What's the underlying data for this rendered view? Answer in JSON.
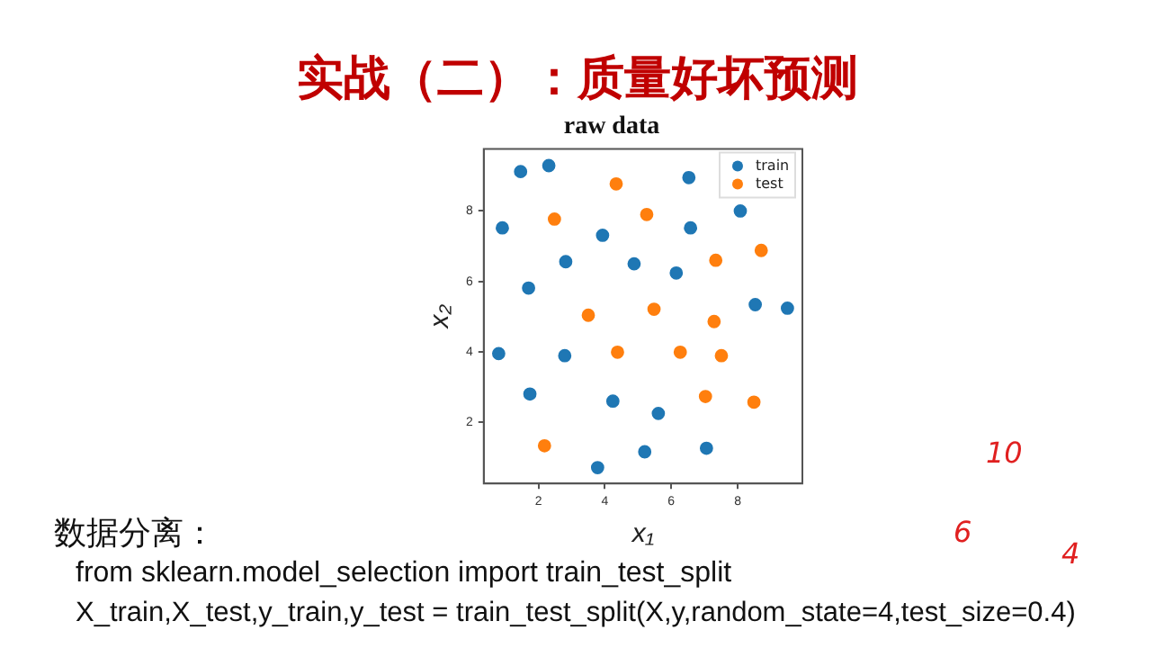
{
  "chart_data": {
    "type": "scatter",
    "title": "raw data",
    "xlabel": "x₁",
    "ylabel": "x₂",
    "series": [
      {
        "name": "train",
        "color": "#1f77b4",
        "x": [
          1.46,
          2.31,
          6.53,
          0.91,
          3.93,
          6.58,
          8.08,
          2.82,
          4.88,
          6.15,
          1.7,
          8.53,
          9.5,
          0.8,
          2.79,
          1.74,
          4.24,
          5.61,
          7.06,
          5.2,
          3.78
        ],
        "values": [
          9.12,
          9.29,
          8.95,
          7.52,
          7.31,
          7.52,
          8.0,
          6.56,
          6.5,
          6.24,
          5.81,
          5.34,
          5.24,
          3.95,
          3.89,
          2.8,
          2.6,
          2.25,
          1.26,
          1.16,
          0.71
        ]
      },
      {
        "name": "test",
        "color": "#ff7f0e",
        "x": [
          4.34,
          2.48,
          5.26,
          8.71,
          7.34,
          3.5,
          5.48,
          7.29,
          4.38,
          6.27,
          7.51,
          7.03,
          8.49,
          2.18
        ],
        "values": [
          8.77,
          7.77,
          7.9,
          6.88,
          6.6,
          5.04,
          5.21,
          4.86,
          3.99,
          3.99,
          3.89,
          2.73,
          2.57,
          1.33
        ]
      }
    ],
    "xlim": [
      0.35,
      9.95
    ],
    "ylim": [
      0.26,
      9.76
    ],
    "xticks": [
      2,
      4,
      6,
      8
    ],
    "yticks": [
      2,
      4,
      6,
      8
    ],
    "grid": false,
    "legend": "top right",
    "marker": "circle",
    "annotations": [
      "实战（二）：质量好坏预测",
      "数据分离：",
      "from sklearn.model_selection import train_test_split",
      "X_train,X_test,y_train,y_test = train_test_split(X,y,random_state=4,test_size=0.4)",
      "10",
      "6",
      "4"
    ]
  }
}
